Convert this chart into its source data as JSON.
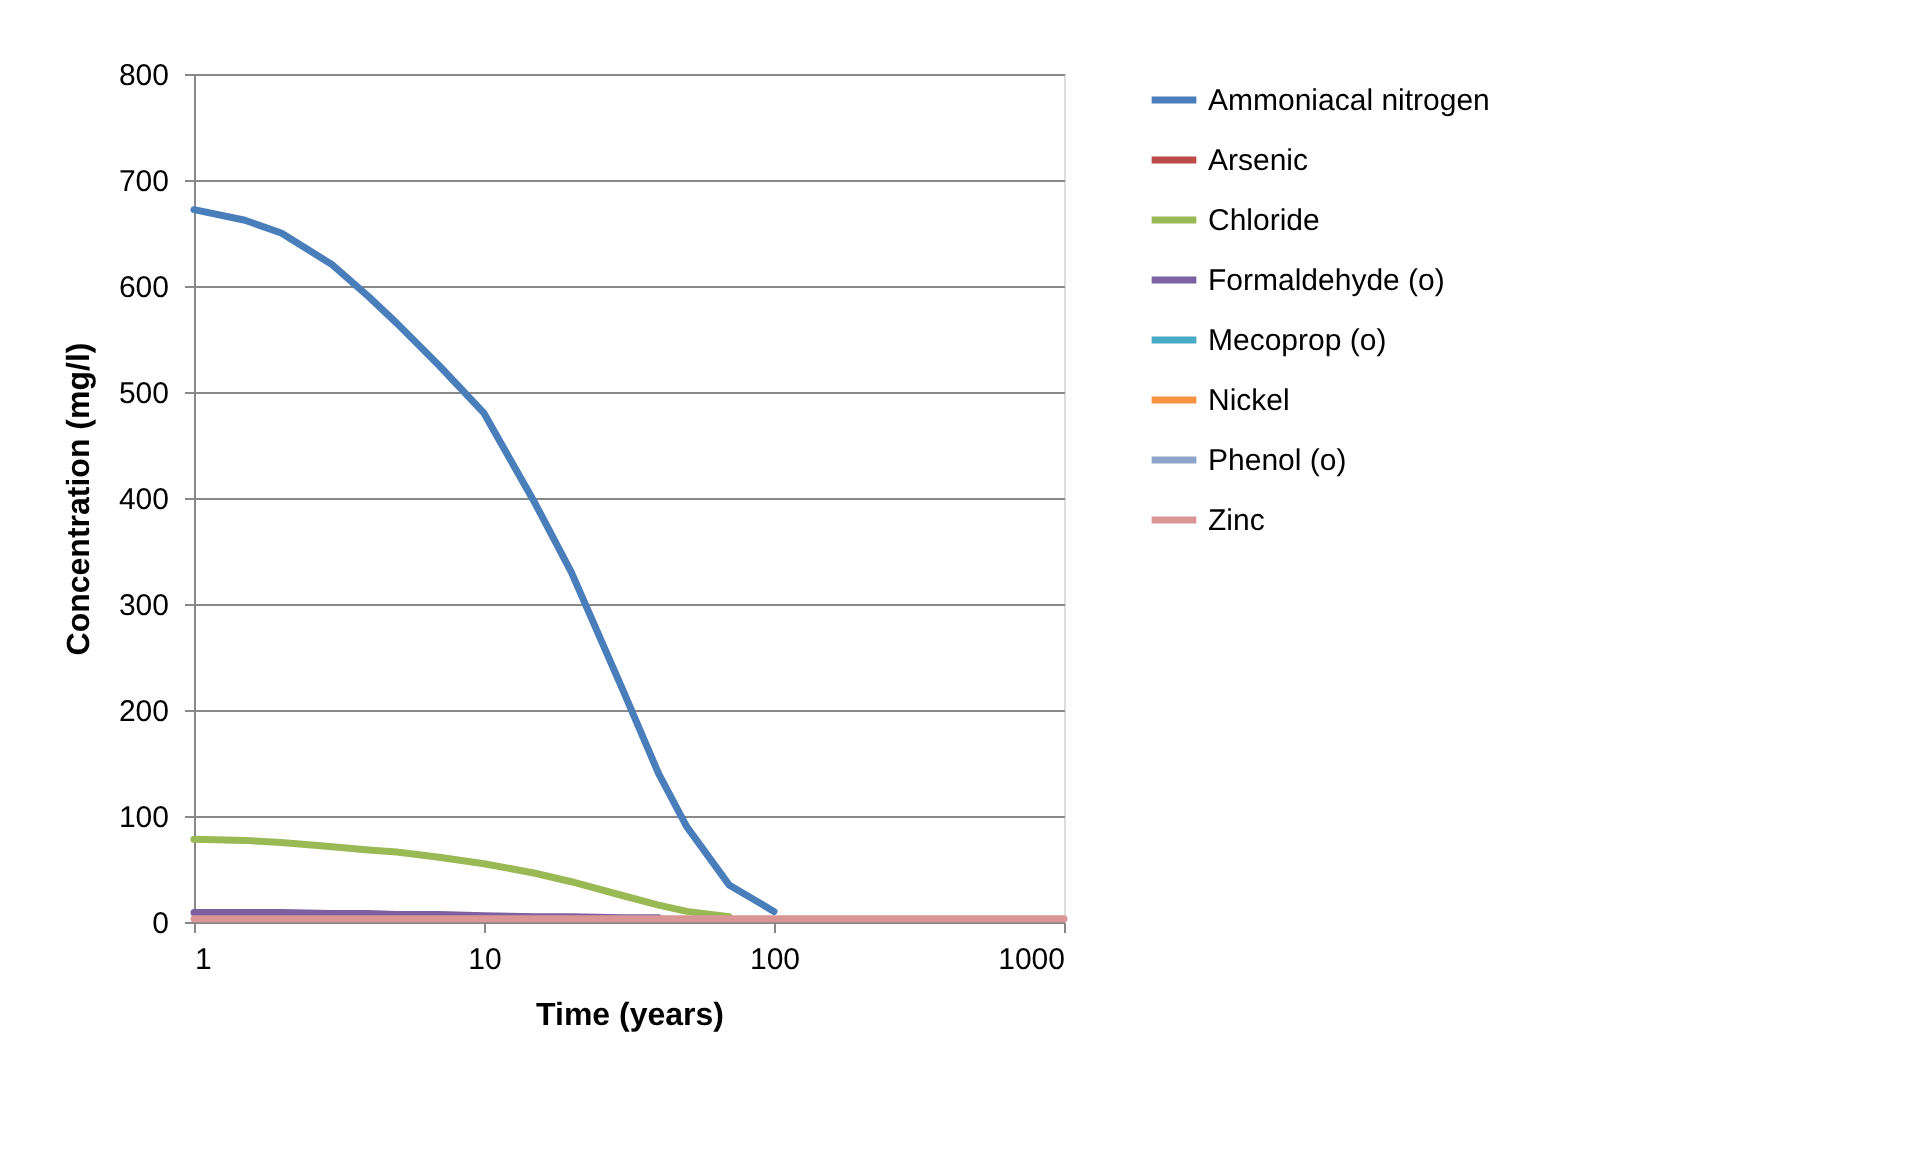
{
  "chart_data": {
    "type": "line",
    "xlabel": "Time (years)",
    "ylabel": "Concentration (mg/l)",
    "x": [
      1,
      1.5,
      2,
      3,
      4,
      5,
      7,
      10,
      15,
      20,
      30,
      40,
      50,
      70,
      100,
      150,
      200,
      300,
      500,
      700,
      1000
    ],
    "series": [
      {
        "name": "Ammoniacal nitrogen",
        "color": "#4a7ebb",
        "values": [
          672,
          662,
          650,
          620,
          590,
          565,
          525,
          480,
          395,
          330,
          220,
          140,
          90,
          35,
          10,
          null,
          null,
          null,
          null,
          null,
          null
        ]
      },
      {
        "name": "Arsenic",
        "color": "#be4b48",
        "values": [
          null,
          null,
          null,
          null,
          null,
          null,
          null,
          null,
          null,
          null,
          null,
          null,
          null,
          null,
          null,
          null,
          null,
          null,
          null,
          null,
          null
        ]
      },
      {
        "name": "Chloride",
        "color": "#98b954",
        "values": [
          78,
          77,
          75,
          71,
          68,
          66,
          61,
          55,
          46,
          38,
          25,
          16,
          10,
          5,
          null,
          null,
          null,
          null,
          null,
          null,
          null
        ]
      },
      {
        "name": "Formaldehyde (o)",
        "color": "#7d60a0",
        "values": [
          9,
          9,
          9,
          8,
          8,
          7,
          7,
          6,
          5,
          5,
          4,
          4,
          null,
          null,
          null,
          null,
          null,
          null,
          null,
          null,
          null
        ]
      },
      {
        "name": "Mecoprop (o)",
        "color": "#46aac5",
        "values": [
          null,
          null,
          null,
          null,
          null,
          null,
          null,
          null,
          null,
          null,
          null,
          null,
          null,
          null,
          null,
          null,
          null,
          null,
          null,
          null,
          null
        ]
      },
      {
        "name": "Nickel",
        "color": "#f69240",
        "values": [
          null,
          null,
          null,
          null,
          null,
          null,
          null,
          null,
          null,
          null,
          null,
          null,
          null,
          null,
          null,
          null,
          null,
          null,
          null,
          null,
          null
        ]
      },
      {
        "name": "Phenol (o)",
        "color": "#8ea5cb",
        "values": [
          null,
          null,
          null,
          null,
          null,
          null,
          null,
          null,
          null,
          null,
          null,
          null,
          null,
          null,
          null,
          null,
          null,
          null,
          null,
          null,
          null
        ]
      },
      {
        "name": "Zinc",
        "color": "#d99694",
        "values": [
          3,
          3,
          3,
          3,
          3,
          3,
          3,
          3,
          3,
          3,
          3,
          3,
          3,
          3,
          3,
          3,
          3,
          3,
          3,
          3,
          3
        ]
      }
    ],
    "xlim": [
      1,
      1000
    ],
    "xticks": [
      1,
      10,
      100,
      1000
    ],
    "ylim": [
      0,
      800
    ],
    "yticks": [
      0,
      100,
      200,
      300,
      400,
      500,
      600,
      700,
      800
    ],
    "log": "x",
    "grid": "y",
    "legend": "right",
    "marker": "none",
    "line_style": "solid"
  }
}
